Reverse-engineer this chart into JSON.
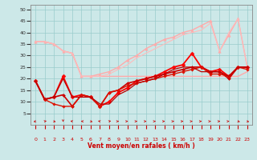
{
  "xlabel": "Vent moyen/en rafales ( km/h )",
  "xlim": [
    -0.5,
    23.5
  ],
  "ylim": [
    0,
    52
  ],
  "yticks": [
    5,
    10,
    15,
    20,
    25,
    30,
    35,
    40,
    45,
    50
  ],
  "xticks": [
    0,
    1,
    2,
    3,
    4,
    5,
    6,
    7,
    8,
    9,
    10,
    11,
    12,
    13,
    14,
    15,
    16,
    17,
    18,
    19,
    20,
    21,
    22,
    23
  ],
  "bg_color": "#cce8e8",
  "grid_color": "#99cccc",
  "lines": [
    {
      "x": [
        0,
        1,
        2,
        3,
        4,
        5,
        6,
        7,
        8,
        9,
        10,
        11,
        12,
        13,
        14,
        15,
        16,
        17,
        18,
        19,
        20,
        21,
        22,
        23
      ],
      "y": [
        36,
        36,
        35,
        32,
        31,
        21,
        21,
        21,
        21,
        21,
        21,
        21,
        21,
        21,
        21,
        21,
        21,
        21,
        21,
        21,
        21,
        21,
        21,
        23
      ],
      "color": "#ffaaaa",
      "lw": 1.0,
      "marker": null
    },
    {
      "x": [
        0,
        1,
        2,
        3,
        4,
        5,
        6,
        7,
        8,
        9,
        10,
        11,
        12,
        13,
        14,
        15,
        16,
        17,
        18,
        19,
        20,
        21,
        22,
        23
      ],
      "y": [
        36,
        36,
        35,
        32,
        31,
        21,
        21,
        22,
        23,
        25,
        28,
        30,
        33,
        35,
        37,
        38,
        40,
        41,
        43,
        45,
        32,
        39,
        46,
        25
      ],
      "color": "#ffaaaa",
      "lw": 1.0,
      "marker": "^",
      "ms": 2.5
    },
    {
      "x": [
        0,
        1,
        2,
        3,
        4,
        5,
        6,
        7,
        8,
        9,
        10,
        11,
        12,
        13,
        14,
        15,
        16,
        17,
        18,
        19,
        20,
        21,
        22,
        23
      ],
      "y": [
        36,
        36,
        35,
        32,
        31,
        21,
        21,
        21,
        22,
        24,
        26,
        29,
        31,
        33,
        35,
        37,
        39,
        40,
        41,
        44,
        32,
        40,
        46,
        25
      ],
      "color": "#ffbbbb",
      "lw": 0.8,
      "marker": null
    },
    {
      "x": [
        0,
        1,
        2,
        3,
        4,
        5,
        6,
        7,
        8,
        9,
        10,
        11,
        12,
        13,
        14,
        15,
        16,
        17,
        18,
        19,
        20,
        21,
        22,
        23
      ],
      "y": [
        19,
        11,
        12,
        21,
        12,
        13,
        12,
        8,
        10,
        14,
        16,
        19,
        20,
        21,
        23,
        25,
        26,
        31,
        25,
        23,
        24,
        21,
        25,
        25
      ],
      "color": "#ff0000",
      "lw": 1.3,
      "marker": "D",
      "ms": 2.5
    },
    {
      "x": [
        0,
        1,
        2,
        3,
        4,
        5,
        6,
        7,
        8,
        9,
        10,
        11,
        12,
        13,
        14,
        15,
        16,
        17,
        18,
        19,
        20,
        21,
        22,
        23
      ],
      "y": [
        19,
        11,
        12,
        13,
        8,
        13,
        12,
        8,
        14,
        15,
        18,
        19,
        20,
        21,
        22,
        23,
        24,
        25,
        25,
        23,
        23,
        20,
        25,
        25
      ],
      "color": "#cc0000",
      "lw": 1.2,
      "marker": "D",
      "ms": 2.0
    },
    {
      "x": [
        0,
        1,
        2,
        3,
        4,
        5,
        6,
        7,
        8,
        9,
        10,
        11,
        12,
        13,
        14,
        15,
        16,
        17,
        18,
        19,
        20,
        21,
        22,
        23
      ],
      "y": [
        19,
        11,
        9,
        8,
        8,
        13,
        12,
        8,
        14,
        15,
        17,
        18,
        19,
        20,
        21,
        22,
        23,
        24,
        25,
        22,
        22,
        21,
        25,
        24
      ],
      "color": "#dd1100",
      "lw": 1.0,
      "marker": "D",
      "ms": 1.8
    },
    {
      "x": [
        0,
        1,
        2,
        3,
        4,
        5,
        6,
        7,
        8,
        9,
        10,
        11,
        12,
        13,
        14,
        15,
        16,
        17,
        18,
        19,
        20,
        21,
        22,
        23
      ],
      "y": [
        19,
        11,
        12,
        20,
        12,
        12,
        12,
        9,
        9,
        13,
        15,
        18,
        19,
        20,
        22,
        24,
        25,
        25,
        23,
        23,
        23,
        21,
        25,
        25
      ],
      "color": "#bb0000",
      "lw": 0.9,
      "marker": null
    }
  ],
  "wind_directions": [
    225,
    45,
    135,
    180,
    315,
    270,
    135,
    315,
    45,
    90,
    90,
    90,
    90,
    90,
    90,
    90,
    90,
    90,
    90,
    90,
    90,
    90,
    135,
    135
  ]
}
